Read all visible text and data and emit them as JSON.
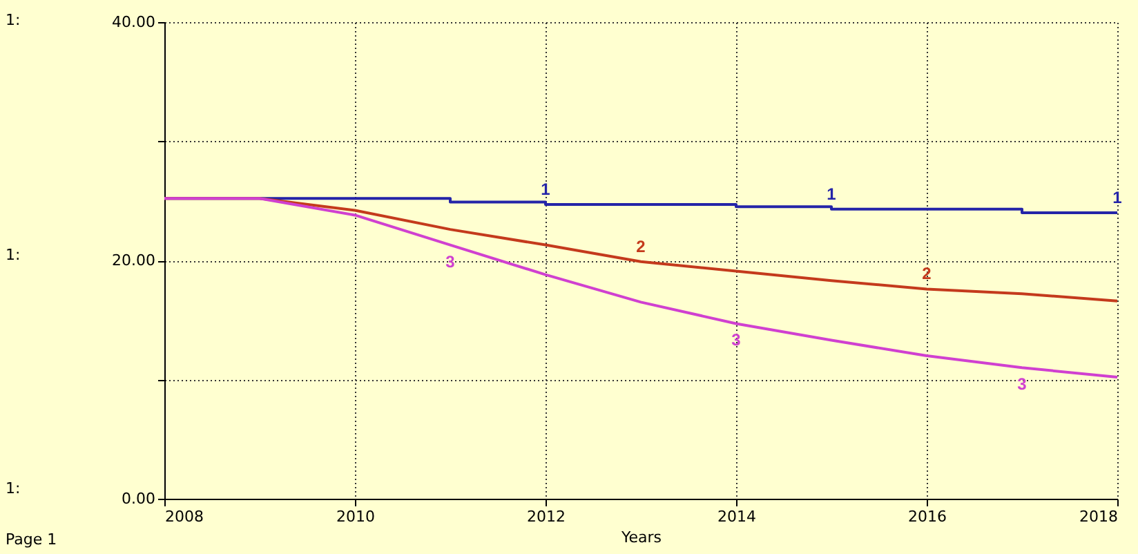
{
  "chart_data": {
    "type": "line",
    "xlabel": "Years",
    "x": [
      2008,
      2009,
      2010,
      2011,
      2012,
      2013,
      2014,
      2015,
      2016,
      2017,
      2018
    ],
    "series": [
      {
        "name": "1",
        "type": "step",
        "color": "#2424a8",
        "values": [
          25.2,
          25.2,
          25.2,
          24.9,
          24.7,
          24.7,
          24.5,
          24.3,
          24.3,
          24.0,
          24.0
        ]
      },
      {
        "name": "2",
        "color": "#c43a1c",
        "values": [
          25.2,
          25.2,
          24.2,
          22.6,
          21.3,
          19.9,
          19.1,
          18.3,
          17.6,
          17.2,
          16.6
        ]
      },
      {
        "name": "3",
        "color": "#d040d0",
        "values": [
          25.2,
          25.2,
          23.8,
          21.3,
          18.8,
          16.5,
          14.7,
          13.3,
          12.0,
          11.0,
          10.2
        ]
      }
    ],
    "xlim": [
      2008,
      2018
    ],
    "xticks": [
      2008,
      2010,
      2012,
      2014,
      2016,
      2018
    ],
    "ylim": [
      0,
      40
    ],
    "yticks": [
      {
        "value": 0,
        "label": "0.00"
      },
      {
        "value": 10,
        "label": null
      },
      {
        "value": 20,
        "label": "20.00"
      },
      {
        "value": 30,
        "label": null
      },
      {
        "value": 40,
        "label": "40.00"
      }
    ],
    "grid": true,
    "legend": false,
    "line_style": "solid",
    "marker": "none",
    "annotations": [
      "1:",
      "1:",
      "1:",
      "Page 1"
    ]
  }
}
